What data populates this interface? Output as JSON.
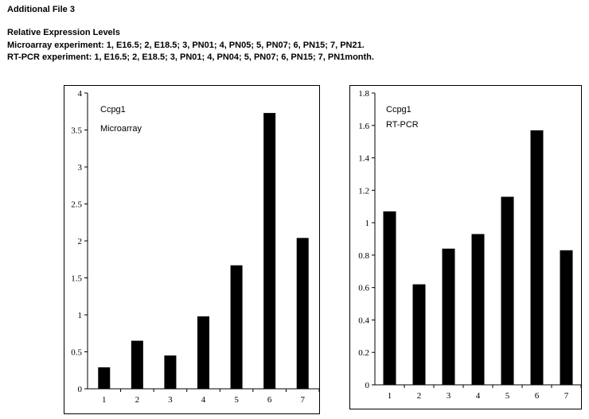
{
  "header": {
    "file_title": "Additional File 3",
    "subtitle": "Relative Expression Levels",
    "line1": "Microarray experiment: 1, E16.5; 2, E18.5; 3, PN01; 4, PN05; 5, PN07; 6, PN15; 7, PN21.",
    "line2": "RT-PCR experiment: 1, E16.5; 2, E18.5; 3, PN01; 4, PN04; 5, PN07; 6, PN15; 7, PN1month."
  },
  "chart_data": [
    {
      "type": "bar",
      "title": "Ccpg1",
      "subtitle": "Microarray",
      "categories": [
        "1",
        "2",
        "3",
        "4",
        "5",
        "6",
        "7"
      ],
      "values": [
        0.29,
        0.65,
        0.45,
        0.98,
        1.67,
        3.73,
        2.04
      ],
      "ylim": [
        0,
        4
      ],
      "yticks": [
        "0",
        "0.5",
        "1",
        "1.5",
        "2",
        "2.5",
        "3",
        "3.5",
        "4"
      ],
      "xlabel": "",
      "ylabel": "",
      "bar_color": "#000000",
      "grid": false
    },
    {
      "type": "bar",
      "title": "Ccpg1",
      "subtitle": "RT-PCR",
      "categories": [
        "1",
        "2",
        "3",
        "4",
        "5",
        "6",
        "7"
      ],
      "values": [
        1.07,
        0.62,
        0.84,
        0.93,
        1.16,
        1.57,
        0.83
      ],
      "ylim": [
        0,
        1.8
      ],
      "yticks": [
        "0",
        "0.2",
        "0.4",
        "0.6",
        "0.8",
        "1",
        "1.2",
        "1.4",
        "1.6",
        "1.8"
      ],
      "xlabel": "",
      "ylabel": "",
      "bar_color": "#000000",
      "grid": false
    }
  ]
}
